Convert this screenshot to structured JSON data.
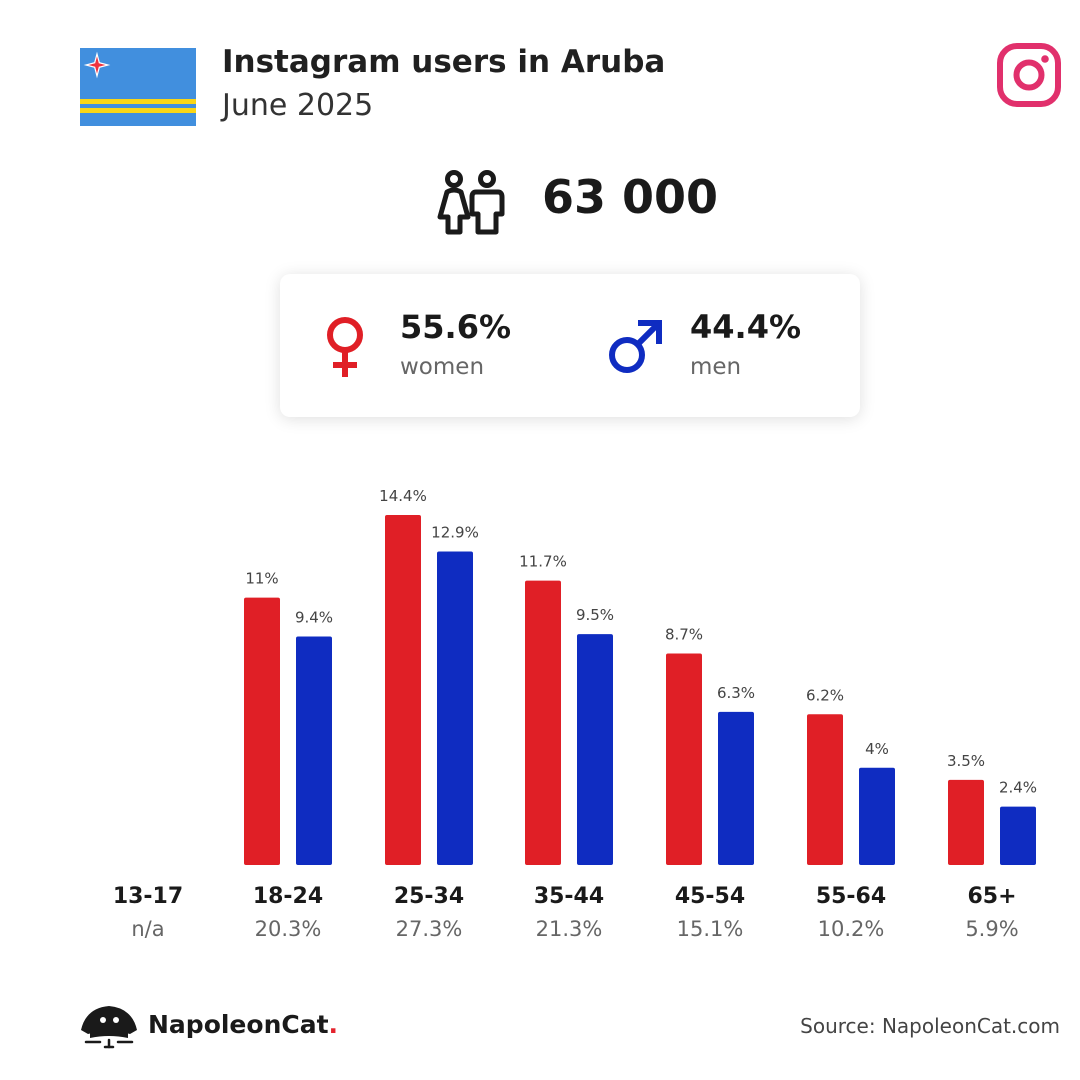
{
  "header": {
    "title": "Instagram users in Aruba",
    "subtitle": "June 2025"
  },
  "total_users": "63 000",
  "gender": {
    "women": {
      "percent": "55.6%",
      "label": "women"
    },
    "men": {
      "percent": "44.4%",
      "label": "men"
    }
  },
  "colors": {
    "women": "#e01f26",
    "men": "#0f2cc1",
    "instagram": "#e1306c",
    "flag_blue": "#418fde",
    "flag_yellow": "#f9d616",
    "flag_red": "#ef3340"
  },
  "icons": {
    "flag": "aruba-flag-icon",
    "platform": "instagram-icon",
    "users": "people-icon",
    "women": "female-symbol-icon",
    "men": "male-symbol-icon",
    "brand": "napoleoncat-logo-icon"
  },
  "chart_data": {
    "type": "bar",
    "categories": [
      "13-17",
      "18-24",
      "25-34",
      "35-44",
      "45-54",
      "55-64",
      "65+"
    ],
    "category_totals": [
      "n/a",
      "20.3%",
      "27.3%",
      "21.3%",
      "15.1%",
      "10.2%",
      "5.9%"
    ],
    "series": [
      {
        "name": "women",
        "values": [
          null,
          11,
          14.4,
          11.7,
          8.7,
          6.2,
          3.5
        ],
        "labels": [
          "",
          "11%",
          "14.4%",
          "11.7%",
          "8.7%",
          "6.2%",
          "3.5%"
        ]
      },
      {
        "name": "men",
        "values": [
          null,
          9.4,
          12.9,
          9.5,
          6.3,
          4,
          2.4
        ],
        "labels": [
          "",
          "9.4%",
          "12.9%",
          "9.5%",
          "6.3%",
          "4%",
          "2.4%"
        ]
      }
    ],
    "ylim": [
      0,
      14.4
    ]
  },
  "footer": {
    "brand_name": "NapoleonCat",
    "brand_dot": ".",
    "source": "Source: NapoleonCat.com"
  }
}
